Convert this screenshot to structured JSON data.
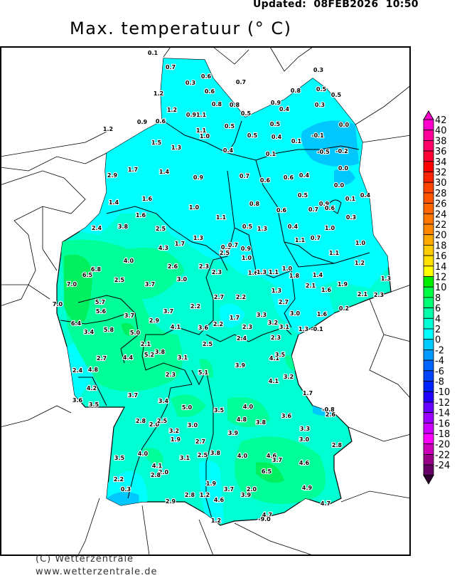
{
  "header": {
    "updated": "Updated:  08FEB2026  10:50",
    "title": "Max. temperatuur (° C)"
  },
  "footer": {
    "copyright": "(C) Wetterzentrale",
    "url": "www.wetterzentrale.de"
  },
  "colors": {
    "lt_minus2": "#00a8ff",
    "m2_0": "#00c8ff",
    "0_2": "#00ffff",
    "2_4": "#00ffd2",
    "4_6": "#00ff99",
    "6_8": "#00f060",
    "border": "#000000"
  },
  "colorbar": {
    "labels": [
      "42",
      "40",
      "38",
      "36",
      "34",
      "32",
      "30",
      "28",
      "26",
      "24",
      "22",
      "20",
      "18",
      "16",
      "14",
      "12",
      "10",
      "8",
      "6",
      "4",
      "2",
      "0",
      "-2",
      "-4",
      "-6",
      "-8",
      "-10",
      "-12",
      "-14",
      "-16",
      "-18",
      "-20",
      "-22",
      "-24"
    ],
    "colors": [
      "#ff00cc",
      "#ff0099",
      "#ff0066",
      "#ff0033",
      "#ff0000",
      "#ff2200",
      "#ff4400",
      "#ff5500",
      "#ff6600",
      "#ff7700",
      "#ff8800",
      "#ffaa00",
      "#ffcc00",
      "#ffe000",
      "#ffff00",
      "#00ee00",
      "#00ff44",
      "#00ff77",
      "#00ffaa",
      "#00ffd2",
      "#00ffff",
      "#00ccff",
      "#0099ff",
      "#0066ff",
      "#0044ff",
      "#0022ff",
      "#2200ff",
      "#6600ff",
      "#9900ff",
      "#cc00ff",
      "#ff00ff",
      "#cc00bb",
      "#990088",
      "#660066"
    ],
    "top_arrow_color": "#ff00cc",
    "bottom_arrow_color": "#330033"
  },
  "stations": [
    "0.1",
    "0.7",
    "0.3",
    "0.6",
    "0.6",
    "0.8",
    "1.2",
    "1.2",
    "0.9",
    "1.1",
    "0.9",
    "0.6",
    "1.2",
    "1.5",
    "1.3",
    "1.1",
    "1.0",
    "0.4",
    "0.5",
    "0.7",
    "0.8",
    "0.5",
    "0.9",
    "0.4",
    "0.8",
    "0.3",
    "0.5",
    "0.5",
    "0.3",
    "0.0",
    "0.5",
    "0.4",
    "0.5",
    "0.1",
    "-0.1",
    "-0.5",
    "-0.2",
    "0.1",
    "0.0",
    "0.0",
    "0.7",
    "0.6",
    "0.6",
    "0.4",
    "0.5",
    "0.9",
    "0.7",
    "0.6",
    "0.1",
    "0.4",
    "0.3",
    "0.8",
    "0.6",
    "0.4",
    "1.0",
    "1.1",
    "0.5",
    "1.3",
    "0.7",
    "1.1",
    "1.1",
    "1.0",
    "1.7",
    "2.9",
    "1.4",
    "0.9",
    "1.4",
    "1.6",
    "1.6",
    "1.0",
    "2.4",
    "3.8",
    "2.5",
    "1.3",
    "1.7",
    "4.3",
    "4.0",
    "6.8",
    "6.5",
    "7.0",
    "2.5",
    "2.6",
    "3.7",
    "3.0",
    "2.3",
    "2.3",
    "0.5",
    "0.7",
    "2.5",
    "0.9",
    "1.0",
    "1.6",
    "1.3",
    "1.1",
    "1.0",
    "1.8",
    "1.4",
    "1.2",
    "1.3",
    "1.9",
    "1.6",
    "2.1",
    "2.3",
    "2.1",
    "0.2",
    "1.6",
    "3.0",
    "1.3",
    "-0.1",
    "3.3",
    "3.2",
    "3.1",
    "2.3",
    "2.7",
    "1.3",
    "2.7",
    "2.2",
    "1.7",
    "2.3",
    "2.4",
    "2.2",
    "7.0",
    "5.7",
    "5.6",
    "3.7",
    "3.7",
    "2.9",
    "4.1",
    "3.6",
    "2.2",
    "6.4",
    "3.4",
    "5.8",
    "5.0",
    "2.1",
    "2.5",
    "2.7",
    "4.4",
    "5.2",
    "3.8",
    "3.1",
    "2.4",
    "4.8",
    "2.3",
    "5.1",
    "4.2",
    "3.7",
    "3.6",
    "3.5",
    "3.4",
    "5.0",
    "3.5",
    "4.1",
    "3.9",
    "4.1",
    "3.5",
    "3.2",
    "1.7",
    "-0.8",
    "2.6",
    "4.0",
    "4.8",
    "3.8",
    "3.6",
    "3.3",
    "3.0",
    "2.8",
    "2.8",
    "2.0",
    "2.5",
    "3.2",
    "3.0",
    "1.9",
    "2.7",
    "3.9",
    "3.5",
    "4.0",
    "4.1",
    "2.0",
    "2.8",
    "3.1",
    "2.5",
    "3.8",
    "4.0",
    "4.6",
    "3.7",
    "4.6",
    "6.5",
    "2.2",
    "0.3",
    "1.9",
    "2.8",
    "1.2",
    "3.7",
    "2.0",
    "3.9",
    "4.6",
    "2.9",
    "4.9",
    "4.7",
    "4.7",
    "-9.0",
    "1.2"
  ]
}
